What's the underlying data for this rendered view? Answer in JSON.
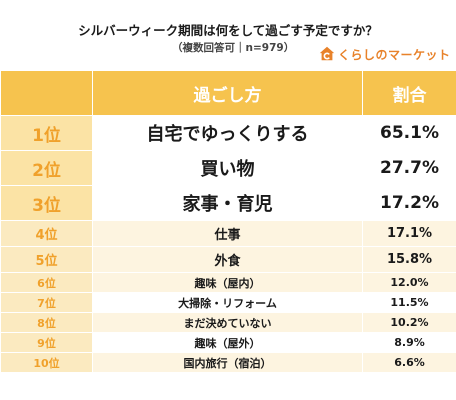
{
  "header": {
    "question": "シルバーウィーク期間は何をして過ごす予定ですか？",
    "note": "（複数回答可｜n=979）",
    "logo_text": "くらしのマーケット",
    "logo_icon": "house-c-logo-icon",
    "accent_color": "#e8822a"
  },
  "table": {
    "columns": [
      "過ごし方",
      "割合"
    ],
    "header_color": "#f6c34e",
    "rank_color": "#f0a12b",
    "rows": [
      {
        "rank": "1位",
        "item": "自宅でゆっくりする",
        "pct": "65.1%"
      },
      {
        "rank": "2位",
        "item": "買い物",
        "pct": "27.7%"
      },
      {
        "rank": "3位",
        "item": "家事・育児",
        "pct": "17.2%"
      },
      {
        "rank": "4位",
        "item": "仕事",
        "pct": "17.1%"
      },
      {
        "rank": "5位",
        "item": "外食",
        "pct": "15.8%"
      },
      {
        "rank": "6位",
        "item": "趣味（屋内）",
        "pct": "12.0%"
      },
      {
        "rank": "7位",
        "item": "大掃除・リフォーム",
        "pct": "11.5%"
      },
      {
        "rank": "8位",
        "item": "まだ決めていない",
        "pct": "10.2%"
      },
      {
        "rank": "9位",
        "item": "趣味（屋外）",
        "pct": "8.9%"
      },
      {
        "rank": "10位",
        "item": "国内旅行（宿泊）",
        "pct": "6.6%"
      }
    ]
  }
}
